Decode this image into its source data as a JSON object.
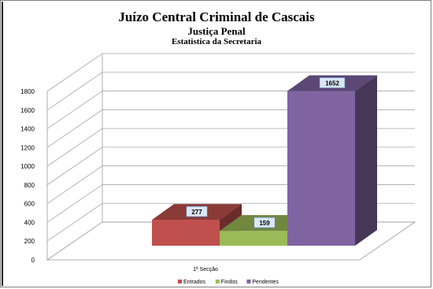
{
  "chart_data": {
    "type": "bar",
    "title": "Juízo Central Criminal de Cascais",
    "subtitle": "Justiça Penal",
    "subtitle2": "Estatistica da Secretaria",
    "categories": [
      "1ª Secção"
    ],
    "series": [
      {
        "name": "Entrados",
        "values": [
          277
        ],
        "color": "#c0504d"
      },
      {
        "name": "Findos",
        "values": [
          159
        ],
        "color": "#9bbb59"
      },
      {
        "name": "Pendentes",
        "values": [
          1652
        ],
        "color": "#8064a2"
      }
    ],
    "ylim": [
      0,
      1800
    ],
    "yticks": [
      "0",
      "200",
      "400",
      "600",
      "800",
      "1000",
      "1200",
      "1400",
      "1600",
      "1800"
    ],
    "grid": true,
    "legend_position": "bottom",
    "data_labels": true,
    "style": "3d"
  }
}
